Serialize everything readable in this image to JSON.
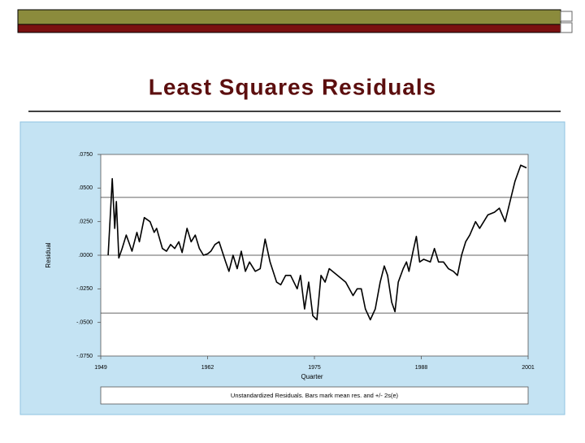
{
  "chart_data": {
    "type": "line",
    "title": "Least Squares Residuals",
    "ylabel": "Residual",
    "xlabel": "Quarter",
    "caption": "Unstandardized Residuals. Bars mark mean res. and +/- 2s(e)",
    "xlim": [
      1949,
      2001
    ],
    "xticks": [
      1949,
      1962,
      1975,
      1988,
      2001
    ],
    "ylim": [
      -0.075,
      0.075
    ],
    "yticks": [
      {
        "value": 0.075,
        "label": ".0750"
      },
      {
        "value": 0.05,
        "label": ".0500"
      },
      {
        "value": 0.025,
        "label": ".0250"
      },
      {
        "value": 0,
        "label": ".0000"
      },
      {
        "value": -0.025,
        "label": "-.0250"
      },
      {
        "value": -0.05,
        "label": "-.0500"
      },
      {
        "value": -0.075,
        "label": "-.0750"
      }
    ],
    "reference_lines": [
      0,
      0.043,
      -0.043
    ],
    "color": "#000000",
    "x": [
      1949.9,
      1950.3,
      1950.4,
      1950.7,
      1950.9,
      1951.2,
      1951.6,
      1952.1,
      1952.4,
      1952.8,
      1953.4,
      1953.7,
      1954.3,
      1955.0,
      1955.5,
      1955.8,
      1956.5,
      1957.0,
      1957.5,
      1958.0,
      1958.5,
      1958.9,
      1959.5,
      1960.0,
      1960.5,
      1961.0,
      1961.5,
      1962.0,
      1962.4,
      1962.9,
      1963.4,
      1964.2,
      1964.6,
      1965.1,
      1965.6,
      1966.1,
      1966.6,
      1967.1,
      1967.8,
      1968.4,
      1969.0,
      1969.6,
      1970.4,
      1970.9,
      1971.5,
      1972.1,
      1972.9,
      1973.3,
      1973.8,
      1974.3,
      1974.8,
      1975.3,
      1975.8,
      1976.3,
      1976.8,
      1977.8,
      1978.8,
      1979.7,
      1980.2,
      1980.7,
      1981.2,
      1981.8,
      1982.4,
      1983.0,
      1983.5,
      1983.9,
      1984.4,
      1984.8,
      1985.2,
      1985.8,
      1986.2,
      1986.5,
      1987.0,
      1987.4,
      1987.8,
      1988.3,
      1989.1,
      1989.6,
      1990.1,
      1990.7,
      1991.3,
      1991.9,
      1992.4,
      1992.9,
      1993.4,
      1993.9,
      1994.6,
      1995.1,
      1996.1,
      1996.9,
      1997.5,
      1998.2,
      1998.8,
      1999.4,
      2000.1,
      2000.8
    ],
    "values": [
      0,
      0.045,
      0.057,
      0.02,
      0.04,
      -0.002,
      0.005,
      0.015,
      0.01,
      0.003,
      0.017,
      0.01,
      0.028,
      0.025,
      0.017,
      0.02,
      0.005,
      0.003,
      0.008,
      0.005,
      0.01,
      0.002,
      0.02,
      0.01,
      0.015,
      0.005,
      0,
      0.001,
      0.003,
      0.008,
      0.01,
      -0.005,
      -0.012,
      0,
      -0.01,
      0.003,
      -0.012,
      -0.005,
      -0.012,
      -0.01,
      0.012,
      -0.005,
      -0.02,
      -0.022,
      -0.015,
      -0.015,
      -0.025,
      -0.015,
      -0.04,
      -0.02,
      -0.045,
      -0.048,
      -0.015,
      -0.02,
      -0.01,
      -0.015,
      -0.02,
      -0.03,
      -0.025,
      -0.025,
      -0.04,
      -0.048,
      -0.04,
      -0.02,
      -0.008,
      -0.015,
      -0.035,
      -0.042,
      -0.02,
      -0.01,
      -0.005,
      -0.012,
      0.003,
      0.014,
      -0.005,
      -0.003,
      -0.005,
      0.005,
      -0.005,
      -0.005,
      -0.01,
      -0.012,
      -0.015,
      0,
      0.01,
      0.015,
      0.025,
      0.02,
      0.03,
      0.032,
      0.035,
      0.025,
      0.04,
      0.055,
      0.067,
      0.065
    ]
  }
}
